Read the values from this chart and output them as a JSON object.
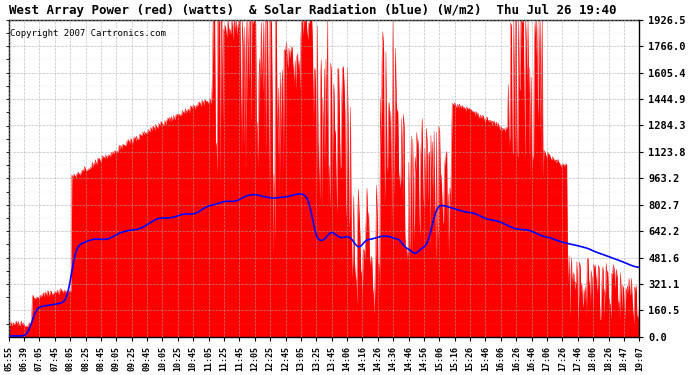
{
  "title": "West Array Power (red) (watts)  & Solar Radiation (blue) (W/m2)  Thu Jul 26 19:40",
  "copyright": "Copyright 2007 Cartronics.com",
  "y_max": 1926.5,
  "y_min": 0.0,
  "y_ticks": [
    0.0,
    160.5,
    321.1,
    481.6,
    642.2,
    802.7,
    963.2,
    1123.8,
    1284.3,
    1444.9,
    1605.4,
    1766.0,
    1926.5
  ],
  "bg_color": "#ffffff",
  "plot_bg": "#ffffff",
  "grid_color": "#aaaaaa",
  "red_color": "#ff0000",
  "blue_color": "#0000ff",
  "x_labels": [
    "05:55",
    "06:39",
    "07:05",
    "07:45",
    "08:05",
    "08:25",
    "08:45",
    "09:05",
    "09:25",
    "09:45",
    "10:05",
    "10:25",
    "10:45",
    "11:05",
    "11:25",
    "11:45",
    "12:05",
    "12:25",
    "12:45",
    "13:05",
    "13:25",
    "13:45",
    "14:06",
    "14:16",
    "14:26",
    "14:36",
    "14:46",
    "14:56",
    "15:06",
    "15:16",
    "15:26",
    "15:46",
    "16:06",
    "16:26",
    "16:46",
    "17:06",
    "17:26",
    "17:46",
    "18:06",
    "18:26",
    "18:47",
    "19:07"
  ]
}
